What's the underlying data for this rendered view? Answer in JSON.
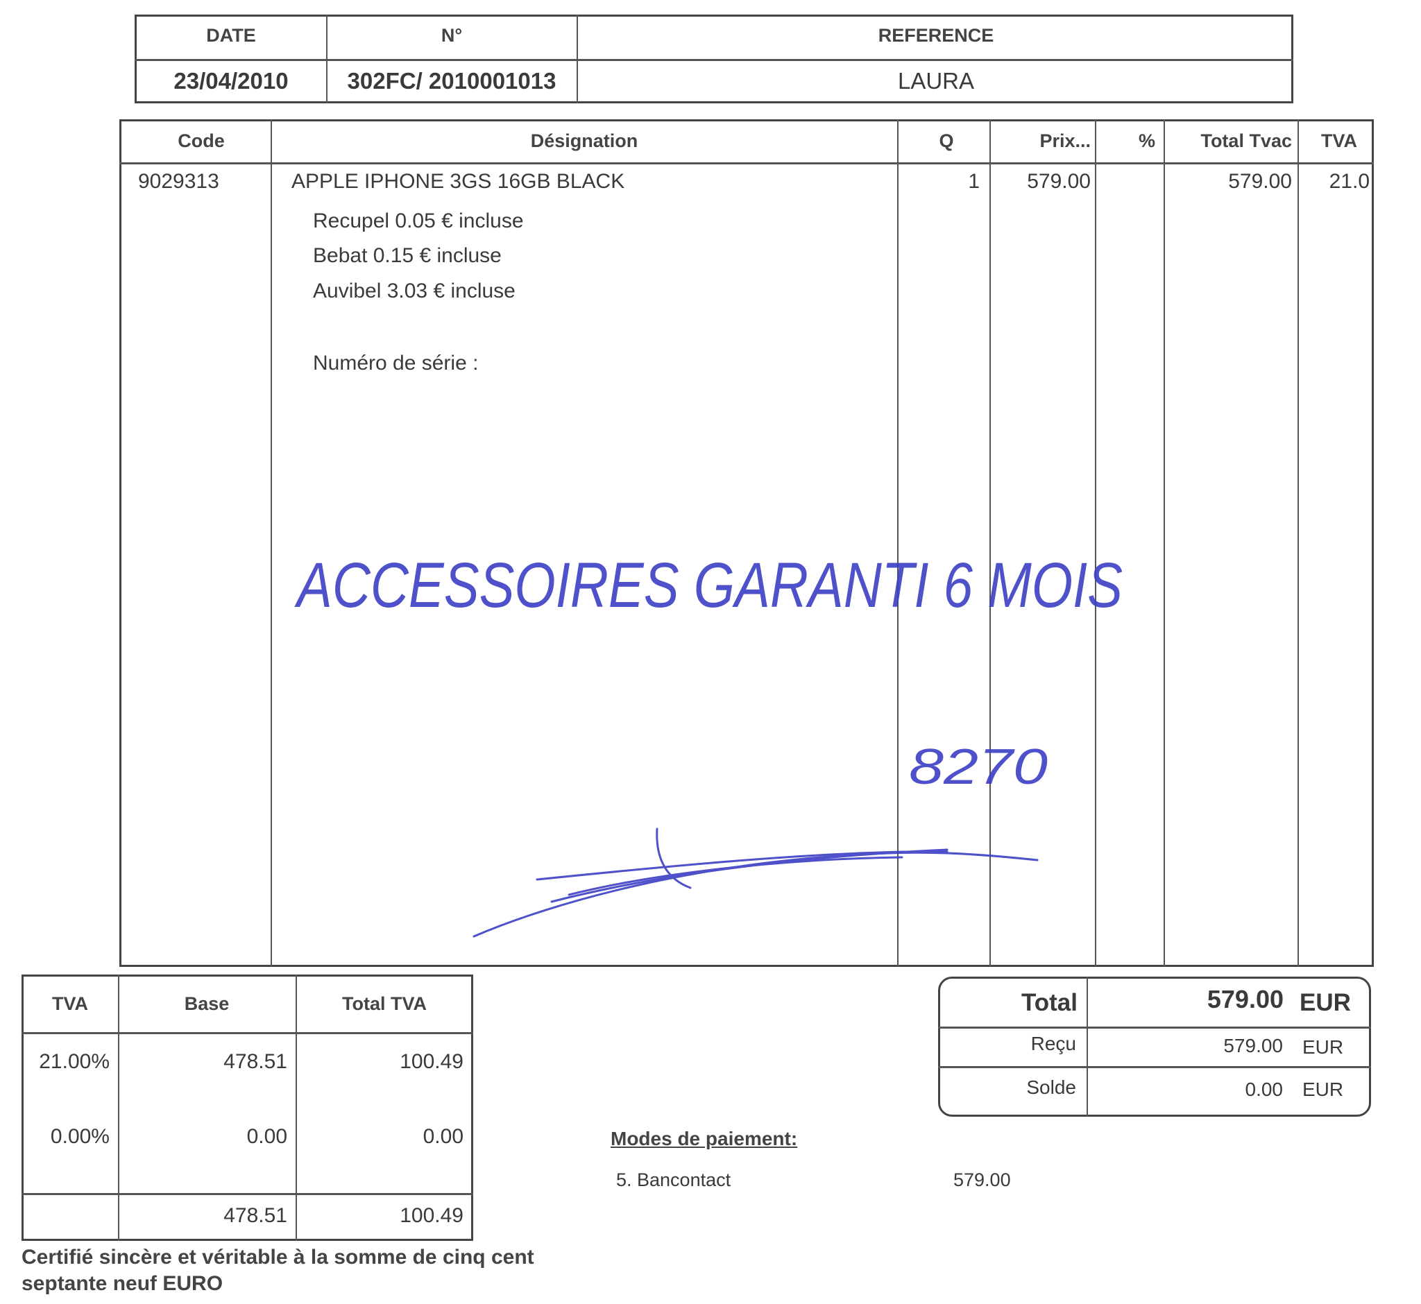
{
  "header": {
    "date_label": "DATE",
    "number_label": "N°",
    "reference_label": "REFERENCE",
    "date": "23/04/2010",
    "number": "302FC/ 2010001013",
    "reference": "LAURA"
  },
  "items_table": {
    "columns": [
      "Code",
      "Désignation",
      "Q",
      "Prix...",
      "%",
      "Total Tvac",
      "TVA"
    ],
    "rows": [
      {
        "code": "9029313",
        "designation": "APPLE IPHONE 3GS 16GB BLACK",
        "q": "1",
        "prix": "579.00",
        "pct": "",
        "total_tvac": "579.00",
        "tva": "21.0"
      }
    ],
    "notes": [
      "Recupel 0.05 € incluse",
      "Bebat 0.15 € incluse",
      "Auvibel 3.03 € incluse"
    ],
    "serial_label": "Numéro de série :"
  },
  "handwriting": {
    "note": "ACCESSOIRES GARANTI 6 MOIS",
    "number": "8270",
    "ink_color": "#3b3fc4"
  },
  "vat_table": {
    "columns": [
      "TVA",
      "Base",
      "Total TVA"
    ],
    "rows": [
      {
        "rate": "21.00%",
        "base": "478.51",
        "total": "100.49"
      },
      {
        "rate": "0.00%",
        "base": "0.00",
        "total": "0.00"
      }
    ],
    "totals": {
      "base": "478.51",
      "total": "100.49"
    }
  },
  "totals_box": {
    "total_label": "Total",
    "total_value": "579.00",
    "total_currency": "EUR",
    "received_label": "Reçu",
    "received_value": "579.00",
    "received_currency": "EUR",
    "balance_label": "Solde",
    "balance_value": "0.00",
    "balance_currency": "EUR"
  },
  "payment": {
    "title": "Modes de paiement:",
    "method": "5. Bancontact",
    "amount": "579.00"
  },
  "certification": {
    "line1": "Certifié sincère et véritable à la somme de cinq cent",
    "line2": "septante neuf EURO"
  }
}
